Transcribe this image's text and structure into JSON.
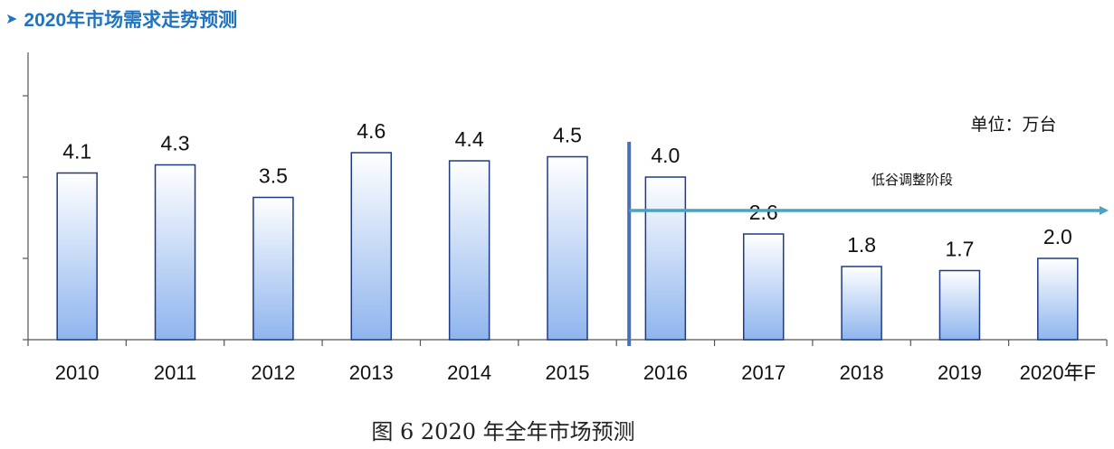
{
  "header": {
    "title": "2020年市场需求走势预测"
  },
  "caption": "图 6 2020 年全年市场预测",
  "chart_data": {
    "type": "bar",
    "title": "",
    "unit_label": "单位：万台",
    "categories": [
      "2010",
      "2011",
      "2012",
      "2013",
      "2014",
      "2015",
      "2016",
      "2017",
      "2018",
      "2019",
      "2020年F"
    ],
    "values": [
      4.1,
      4.3,
      3.5,
      4.6,
      4.4,
      4.5,
      4.0,
      2.6,
      1.8,
      1.7,
      2.0
    ],
    "value_labels": [
      "4.1",
      "4.3",
      "3.5",
      "4.6",
      "4.4",
      "4.5",
      "4.0",
      "2.6",
      "1.8",
      "1.7",
      "2.0"
    ],
    "ylim": [
      0,
      6
    ],
    "annotation": {
      "text": "低谷调整阶段",
      "starts_at": "2016"
    },
    "colors": {
      "bar_top": "#ffffff",
      "bar_bottom": "#8fb5ee",
      "bar_border": "#1d3a84",
      "arrow": "#4aa3c5",
      "divider": "#4a6fb4",
      "title": "#1f74c0"
    }
  }
}
